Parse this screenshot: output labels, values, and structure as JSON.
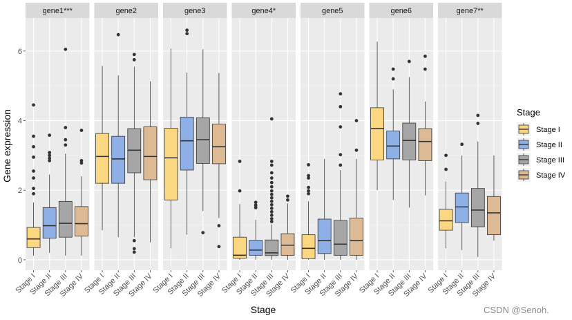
{
  "chart_data": {
    "type": "boxplot",
    "xlabel": "Stage",
    "ylabel": "Gene expression",
    "ylim": [
      -0.3,
      6.95
    ],
    "yticks": [
      0,
      2,
      4,
      6
    ],
    "categories": [
      "Stage I",
      "Stage II",
      "Stage III",
      "Stage IV"
    ],
    "legend": {
      "title": "Stage",
      "position": "right",
      "entries": [
        "Stage I",
        "Stage II",
        "Stage III",
        "Stage IV"
      ]
    },
    "colors": {
      "Stage I": "#FBD782",
      "Stage II": "#8FB0E6",
      "Stage III": "#A6A6A6",
      "Stage IV": "#DDBA94"
    },
    "panels": [
      {
        "label": "gene1***",
        "boxes": [
          {
            "stage": "Stage I",
            "lower": 0.12,
            "q1": 0.35,
            "median": 0.6,
            "q3": 0.93,
            "upper": 1.65,
            "outliers": [
              4.45,
              3.55,
              3.25,
              2.95,
              2.55,
              2.35,
              2.05,
              1.9
            ]
          },
          {
            "stage": "Stage II",
            "lower": 0.2,
            "q1": 0.62,
            "median": 0.98,
            "q3": 1.5,
            "upper": 2.45,
            "outliers": [
              3.58,
              3.08,
              3.0,
              2.92,
              2.85
            ]
          },
          {
            "stage": "Stage III",
            "lower": 0.12,
            "q1": 0.65,
            "median": 1.05,
            "q3": 1.68,
            "upper": 3.05,
            "outliers": [
              6.05,
              3.8,
              3.45,
              3.3
            ]
          },
          {
            "stage": "Stage IV",
            "lower": 0.12,
            "q1": 0.68,
            "median": 1.04,
            "q3": 1.53,
            "upper": 2.4,
            "outliers": [
              3.72,
              2.85,
              2.78
            ]
          }
        ]
      },
      {
        "label": "gene2",
        "boxes": [
          {
            "stage": "Stage I",
            "lower": 0.85,
            "q1": 2.2,
            "median": 2.97,
            "q3": 3.63,
            "upper": 5.57,
            "outliers": []
          },
          {
            "stage": "Stage II",
            "lower": 0.65,
            "q1": 2.2,
            "median": 2.9,
            "q3": 3.55,
            "upper": 5.3,
            "outliers": [
              6.47
            ]
          },
          {
            "stage": "Stage III",
            "lower": 0.65,
            "q1": 2.5,
            "median": 3.15,
            "q3": 3.77,
            "upper": 5.55,
            "outliers": [
              5.9,
              5.75,
              0.55,
              0.32,
              0.22
            ]
          },
          {
            "stage": "Stage IV",
            "lower": 0.5,
            "q1": 2.3,
            "median": 2.97,
            "q3": 3.82,
            "upper": 5.13,
            "outliers": []
          }
        ]
      },
      {
        "label": "gene3",
        "boxes": [
          {
            "stage": "Stage I",
            "lower": 0.33,
            "q1": 1.72,
            "median": 2.93,
            "q3": 3.78,
            "upper": 6.07,
            "outliers": []
          },
          {
            "stage": "Stage II",
            "lower": 0.72,
            "q1": 2.58,
            "median": 3.42,
            "q3": 4.1,
            "upper": 5.38,
            "outliers": [
              6.6,
              6.5
            ]
          },
          {
            "stage": "Stage III",
            "lower": 1.4,
            "q1": 2.77,
            "median": 3.45,
            "q3": 4.08,
            "upper": 6.05,
            "outliers": [
              0.78
            ]
          },
          {
            "stage": "Stage IV",
            "lower": 1.2,
            "q1": 2.76,
            "median": 3.25,
            "q3": 3.9,
            "upper": 5.37,
            "outliers": [
              0.98,
              0.38
            ]
          }
        ]
      },
      {
        "label": "gene4*",
        "boxes": [
          {
            "stage": "Stage I",
            "lower": 0.0,
            "q1": 0.05,
            "median": 0.13,
            "q3": 0.65,
            "upper": 1.6,
            "outliers": [
              2.83,
              1.98
            ]
          },
          {
            "stage": "Stage II",
            "lower": 0.0,
            "q1": 0.13,
            "median": 0.28,
            "q3": 0.56,
            "upper": 1.15,
            "outliers": [
              1.65,
              1.57,
              1.5
            ]
          },
          {
            "stage": "Stage III",
            "lower": 0.0,
            "q1": 0.12,
            "median": 0.2,
            "q3": 0.57,
            "upper": 1.02,
            "outliers": [
              4.05,
              2.83,
              2.72,
              2.5,
              2.35,
              2.22,
              2.1,
              1.98,
              1.88,
              1.78,
              1.68,
              1.58,
              1.48,
              1.38,
              1.28,
              1.18,
              1.1
            ]
          },
          {
            "stage": "Stage IV",
            "lower": 0.0,
            "q1": 0.13,
            "median": 0.42,
            "q3": 0.75,
            "upper": 1.62,
            "outliers": [
              1.83,
              1.72
            ]
          }
        ]
      },
      {
        "label": "gene5",
        "boxes": [
          {
            "stage": "Stage I",
            "lower": 0.0,
            "q1": 0.03,
            "median": 0.33,
            "q3": 0.72,
            "upper": 1.68,
            "outliers": [
              2.73,
              2.42,
              2.35,
              2.08,
              1.98,
              1.9
            ]
          },
          {
            "stage": "Stage II",
            "lower": 0.0,
            "q1": 0.18,
            "median": 0.55,
            "q3": 1.17,
            "upper": 2.9,
            "outliers": []
          },
          {
            "stage": "Stage III",
            "lower": 0.0,
            "q1": 0.13,
            "median": 0.45,
            "q3": 1.13,
            "upper": 2.58,
            "outliers": [
              4.77,
              4.4,
              3.82,
              3.02,
              2.72
            ]
          },
          {
            "stage": "Stage IV",
            "lower": 0.0,
            "q1": 0.13,
            "median": 0.55,
            "q3": 1.2,
            "upper": 2.9,
            "outliers": [
              4.0,
              3.15
            ]
          }
        ]
      },
      {
        "label": "gene6",
        "boxes": [
          {
            "stage": "Stage I",
            "lower": 2.0,
            "q1": 2.87,
            "median": 3.77,
            "q3": 4.37,
            "upper": 6.27,
            "outliers": []
          },
          {
            "stage": "Stage II",
            "lower": 1.72,
            "q1": 2.9,
            "median": 3.27,
            "q3": 3.7,
            "upper": 4.9,
            "outliers": [
              5.48,
              5.2
            ]
          },
          {
            "stage": "Stage III",
            "lower": 1.5,
            "q1": 2.87,
            "median": 3.43,
            "q3": 3.93,
            "upper": 5.25,
            "outliers": [
              5.7
            ]
          },
          {
            "stage": "Stage IV",
            "lower": 1.85,
            "q1": 2.85,
            "median": 3.4,
            "q3": 3.77,
            "upper": 4.55,
            "outliers": [
              5.85,
              5.48
            ]
          }
        ]
      },
      {
        "label": "gene7**",
        "boxes": [
          {
            "stage": "Stage I",
            "lower": 0.33,
            "q1": 0.85,
            "median": 1.12,
            "q3": 1.45,
            "upper": 2.25,
            "outliers": [
              3.0,
              2.6
            ]
          },
          {
            "stage": "Stage II",
            "lower": 0.28,
            "q1": 1.07,
            "median": 1.52,
            "q3": 1.92,
            "upper": 3.0,
            "outliers": [
              3.32
            ]
          },
          {
            "stage": "Stage III",
            "lower": 0.08,
            "q1": 0.95,
            "median": 1.43,
            "q3": 2.05,
            "upper": 3.4,
            "outliers": [
              4.15,
              3.92
            ]
          },
          {
            "stage": "Stage IV",
            "lower": 0.55,
            "q1": 0.72,
            "median": 1.35,
            "q3": 1.82,
            "upper": 3.0,
            "outliers": []
          }
        ]
      }
    ]
  },
  "watermark": "CSDN @Senoh."
}
